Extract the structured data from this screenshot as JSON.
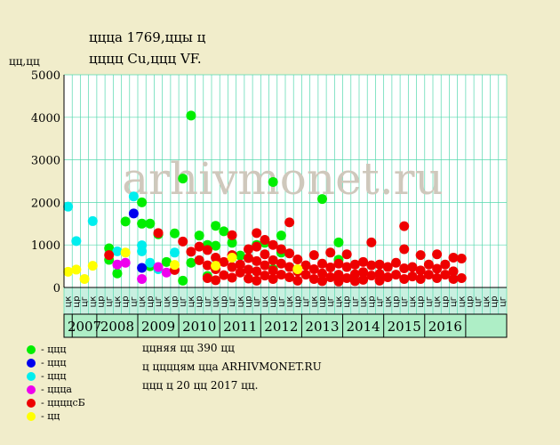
{
  "header": {
    "title_line1": "ццца 1769,ццы ц",
    "title_line2": "цццц Cu,ццц VF.",
    "watermark": "arhivmonet.ru"
  },
  "colors": {
    "background": "#f1edcb",
    "plot_area": "#ffffff",
    "grid": "#55d8ae",
    "axis_band": "#c8f0e0",
    "year_band": "#aeeec6",
    "watermark": "#cfc8bc"
  },
  "chart_data": {
    "type": "scatter",
    "ylabel": "цц,цц",
    "ylim": [
      0,
      5000
    ],
    "yticks": [
      0,
      1000,
      2000,
      3000,
      4000,
      5000
    ],
    "quarter_labels": [
      "цк",
      "цр",
      "цг",
      "цк",
      "цр",
      "цг",
      "цк",
      "цр",
      "цг",
      "цк",
      "цр",
      "цг",
      "цк",
      "цр",
      "цг",
      "цк",
      "цр",
      "цг",
      "цк",
      "цр",
      "цг",
      "цк",
      "цр",
      "цг",
      "цк",
      "цр",
      "цг",
      "цк",
      "цр",
      "цг",
      "цк",
      "цр",
      "цг",
      "цк",
      "цр",
      "цг",
      "цк",
      "цр",
      "цг",
      "цк",
      "цр",
      "цг",
      "цк",
      "цр",
      "цг",
      "цк",
      "цр",
      "цг",
      "цк",
      "цр",
      "цг",
      "цк",
      "цр",
      "цг"
    ],
    "years": [
      {
        "label": "2007",
        "start": 1,
        "span": 3
      },
      {
        "label": "2008",
        "start": 4,
        "span": 5
      },
      {
        "label": "2009",
        "start": 9,
        "span": 5
      },
      {
        "label": "2010",
        "start": 14,
        "span": 5
      },
      {
        "label": "2011",
        "start": 19,
        "span": 5
      },
      {
        "label": "2012",
        "start": 24,
        "span": 5
      },
      {
        "label": "2013",
        "start": 29,
        "span": 5
      },
      {
        "label": "2014",
        "start": 34,
        "span": 5
      },
      {
        "label": "2015",
        "start": 39,
        "span": 5
      },
      {
        "label": "2016",
        "start": 44,
        "span": 5
      }
    ],
    "series": [
      {
        "key": "green",
        "name": "- ццц",
        "color": "#00ee00",
        "points": [
          [
            6,
            920
          ],
          [
            6,
            650
          ],
          [
            7,
            330
          ],
          [
            8,
            1550
          ],
          [
            10,
            2000
          ],
          [
            10,
            1500
          ],
          [
            11,
            1500
          ],
          [
            11,
            500
          ],
          [
            12,
            1250
          ],
          [
            13,
            600
          ],
          [
            14,
            1270
          ],
          [
            15,
            2560
          ],
          [
            15,
            160
          ],
          [
            16,
            4040
          ],
          [
            16,
            580
          ],
          [
            17,
            1220
          ],
          [
            18,
            1000
          ],
          [
            18,
            270
          ],
          [
            19,
            1450
          ],
          [
            19,
            980
          ],
          [
            20,
            1320
          ],
          [
            21,
            1050
          ],
          [
            22,
            750
          ],
          [
            24,
            1000
          ],
          [
            25,
            1050
          ],
          [
            26,
            2480
          ],
          [
            26,
            430
          ],
          [
            27,
            1220
          ],
          [
            27,
            820
          ],
          [
            32,
            2080
          ],
          [
            34,
            1060
          ],
          [
            34,
            650
          ]
        ]
      },
      {
        "key": "blue",
        "name": "- ццц",
        "color": "#0000ee",
        "points": [
          [
            9,
            1740
          ],
          [
            10,
            460
          ]
        ]
      },
      {
        "key": "cyan",
        "name": "- ццц",
        "color": "#00eeee",
        "points": [
          [
            1,
            1900
          ],
          [
            2,
            1090
          ],
          [
            4,
            1560
          ],
          [
            7,
            850
          ],
          [
            9,
            2140
          ],
          [
            10,
            990
          ],
          [
            10,
            850
          ],
          [
            11,
            580
          ],
          [
            12,
            430
          ],
          [
            14,
            820
          ]
        ]
      },
      {
        "key": "magenta",
        "name": "- цццa",
        "color": "#ee00ee",
        "points": [
          [
            7,
            540
          ],
          [
            8,
            580
          ],
          [
            10,
            200
          ],
          [
            12,
            480
          ],
          [
            13,
            350
          ]
        ]
      },
      {
        "key": "red",
        "name": "- ццццcБ",
        "color": "#ee0000",
        "points": [
          [
            6,
            760
          ],
          [
            12,
            1280
          ],
          [
            14,
            410
          ],
          [
            15,
            1080
          ],
          [
            16,
            840
          ],
          [
            17,
            960
          ],
          [
            17,
            640
          ],
          [
            18,
            880
          ],
          [
            18,
            520
          ],
          [
            18,
            220
          ],
          [
            19,
            700
          ],
          [
            19,
            430
          ],
          [
            19,
            170
          ],
          [
            20,
            600
          ],
          [
            20,
            290
          ],
          [
            21,
            1230
          ],
          [
            21,
            760
          ],
          [
            21,
            480
          ],
          [
            21,
            230
          ],
          [
            22,
            540
          ],
          [
            22,
            350
          ],
          [
            23,
            900
          ],
          [
            23,
            690
          ],
          [
            23,
            420
          ],
          [
            23,
            210
          ],
          [
            24,
            1280
          ],
          [
            24,
            960
          ],
          [
            24,
            620
          ],
          [
            24,
            380
          ],
          [
            24,
            160
          ],
          [
            25,
            1120
          ],
          [
            25,
            780
          ],
          [
            25,
            520
          ],
          [
            25,
            280
          ],
          [
            26,
            1000
          ],
          [
            26,
            640
          ],
          [
            26,
            400
          ],
          [
            26,
            200
          ],
          [
            27,
            900
          ],
          [
            27,
            560
          ],
          [
            27,
            300
          ],
          [
            28,
            1530
          ],
          [
            28,
            800
          ],
          [
            28,
            480
          ],
          [
            28,
            240
          ],
          [
            29,
            660
          ],
          [
            29,
            380
          ],
          [
            29,
            160
          ],
          [
            30,
            520
          ],
          [
            30,
            300
          ],
          [
            31,
            760
          ],
          [
            31,
            430
          ],
          [
            31,
            200
          ],
          [
            32,
            560
          ],
          [
            32,
            330
          ],
          [
            32,
            150
          ],
          [
            33,
            820
          ],
          [
            33,
            470
          ],
          [
            33,
            240
          ],
          [
            34,
            560
          ],
          [
            34,
            300
          ],
          [
            34,
            140
          ],
          [
            35,
            780
          ],
          [
            35,
            480
          ],
          [
            35,
            220
          ],
          [
            36,
            540
          ],
          [
            36,
            310
          ],
          [
            36,
            150
          ],
          [
            37,
            600
          ],
          [
            37,
            360
          ],
          [
            37,
            180
          ],
          [
            38,
            1060
          ],
          [
            38,
            520
          ],
          [
            38,
            280
          ],
          [
            39,
            540
          ],
          [
            39,
            320
          ],
          [
            39,
            160
          ],
          [
            40,
            480
          ],
          [
            40,
            240
          ],
          [
            41,
            580
          ],
          [
            41,
            300
          ],
          [
            42,
            1440
          ],
          [
            42,
            900
          ],
          [
            42,
            450
          ],
          [
            42,
            200
          ],
          [
            43,
            480
          ],
          [
            43,
            260
          ],
          [
            44,
            760
          ],
          [
            44,
            400
          ],
          [
            44,
            200
          ],
          [
            45,
            540
          ],
          [
            45,
            300
          ],
          [
            46,
            780
          ],
          [
            46,
            440
          ],
          [
            46,
            220
          ],
          [
            47,
            540
          ],
          [
            47,
            300
          ],
          [
            48,
            700
          ],
          [
            48,
            380
          ],
          [
            48,
            200
          ],
          [
            49,
            680
          ],
          [
            49,
            220
          ]
        ]
      },
      {
        "key": "yellow",
        "name": "- цц",
        "color": "#ffff00",
        "points": [
          [
            1,
            370
          ],
          [
            2,
            420
          ],
          [
            3,
            200
          ],
          [
            4,
            510
          ],
          [
            8,
            820
          ],
          [
            14,
            530
          ],
          [
            19,
            510
          ],
          [
            21,
            700
          ],
          [
            29,
            430
          ]
        ]
      }
    ]
  },
  "info": {
    "line1": "ццняя цц 390 цц",
    "line2": "ц ццццям ццa ARHIVMONET.RU",
    "line3": "ццц ц 20 цц 2017 цц."
  }
}
